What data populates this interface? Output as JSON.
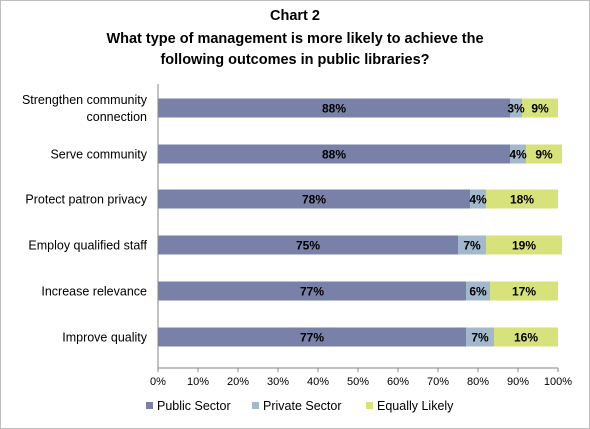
{
  "chart_data": {
    "type": "bar",
    "orientation": "horizontal",
    "stacked": "percent",
    "title": [
      "Chart 2",
      "What type of management is more likely to achieve the",
      "following outcomes in public libraries?"
    ],
    "categories": [
      [
        "Strengthen community",
        "connection"
      ],
      [
        "Serve community"
      ],
      [
        "Protect patron privacy"
      ],
      [
        "Employ qualified staff"
      ],
      [
        "Increase relevance"
      ],
      [
        "Improve quality"
      ]
    ],
    "series": [
      {
        "name": "Public Sector",
        "color": "#7a81a8",
        "values": [
          88,
          88,
          78,
          75,
          77,
          77
        ],
        "labels": [
          "88%",
          "88%",
          "78%",
          "75%",
          "77%",
          "77%"
        ]
      },
      {
        "name": "Private Sector",
        "color": "#a3b8cc",
        "values": [
          3,
          4,
          4,
          7,
          6,
          7
        ],
        "labels": [
          "3%",
          "4%",
          "4%",
          "7%",
          "6%",
          "7%"
        ]
      },
      {
        "name": "Equally Likely",
        "color": "#d8e27a",
        "values": [
          9,
          9,
          18,
          19,
          17,
          16
        ],
        "labels": [
          "9%",
          "9%",
          "18%",
          "19%",
          "17%",
          "16%"
        ]
      }
    ],
    "xlim": [
      0,
      100
    ],
    "x_ticks": [
      "0%",
      "10%",
      "20%",
      "30%",
      "40%",
      "50%",
      "60%",
      "70%",
      "80%",
      "90%",
      "100%"
    ],
    "grid": false,
    "legend_position": "bottom"
  }
}
